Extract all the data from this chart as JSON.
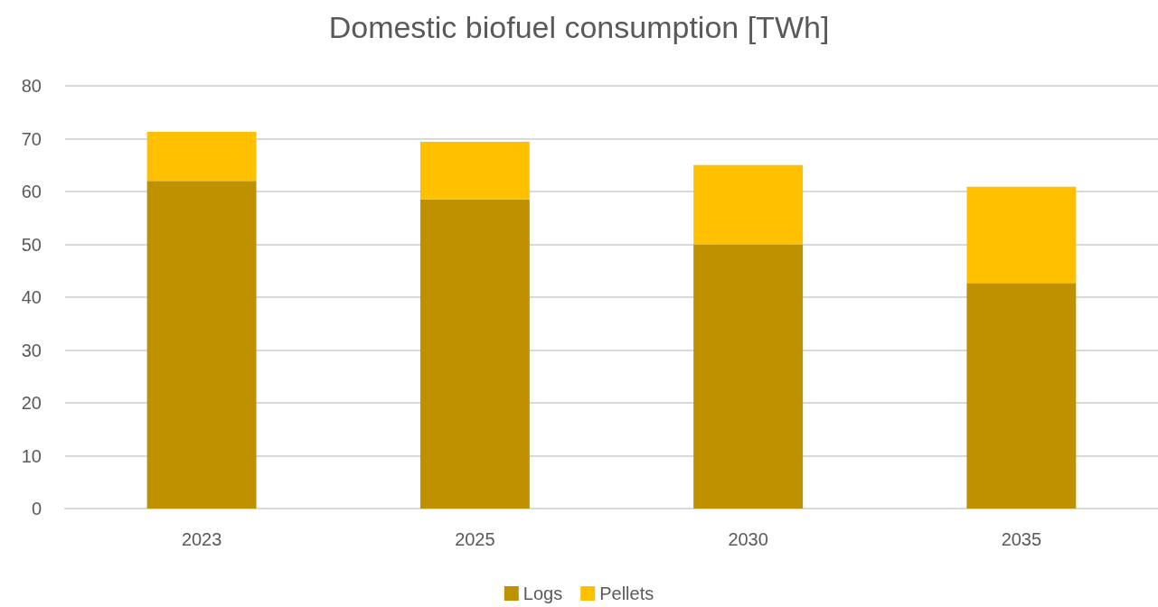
{
  "chart_data": {
    "type": "bar",
    "title": "Domestic biofuel consumption [TWh]",
    "categories": [
      "2023",
      "2025",
      "2030",
      "2035"
    ],
    "series": [
      {
        "name": "Logs",
        "color": "#bf9000",
        "values": [
          62,
          58.5,
          50,
          42.7
        ]
      },
      {
        "name": "Pellets",
        "color": "#ffc000",
        "values": [
          9.3,
          10.9,
          15,
          18.2
        ]
      }
    ],
    "stacked": true,
    "ylim": [
      0,
      80
    ],
    "yticks": [
      0,
      10,
      20,
      30,
      40,
      50,
      60,
      70,
      80
    ],
    "grid": "y",
    "legend": "bottom"
  }
}
